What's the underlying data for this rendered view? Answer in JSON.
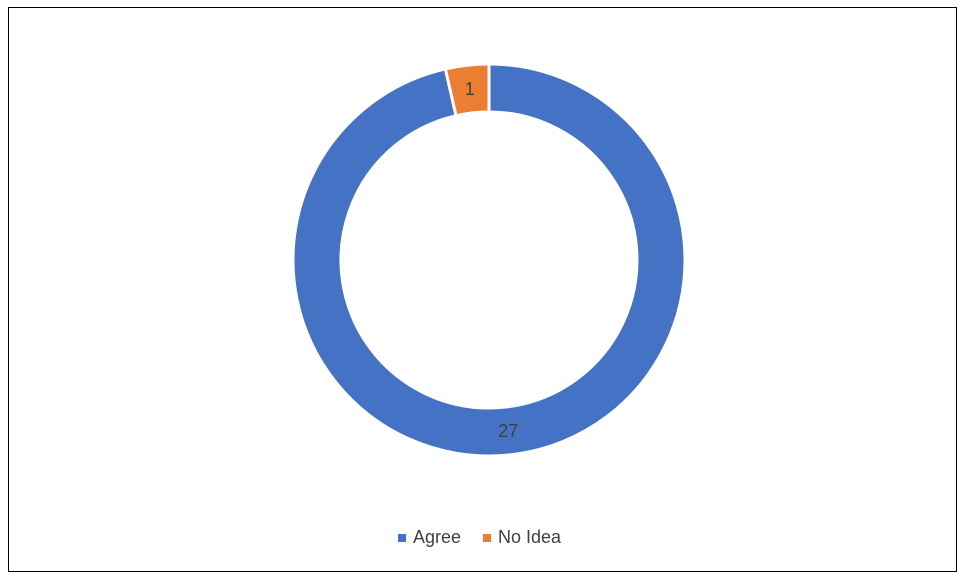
{
  "chart_data": {
    "type": "pie",
    "style": "donut",
    "title": "",
    "categories": [
      "Agree",
      "No Idea"
    ],
    "values": [
      27,
      1
    ],
    "colors": [
      "#4472C4",
      "#ED7D31"
    ],
    "data_labels": [
      "27",
      "1"
    ],
    "legend_position": "bottom"
  }
}
